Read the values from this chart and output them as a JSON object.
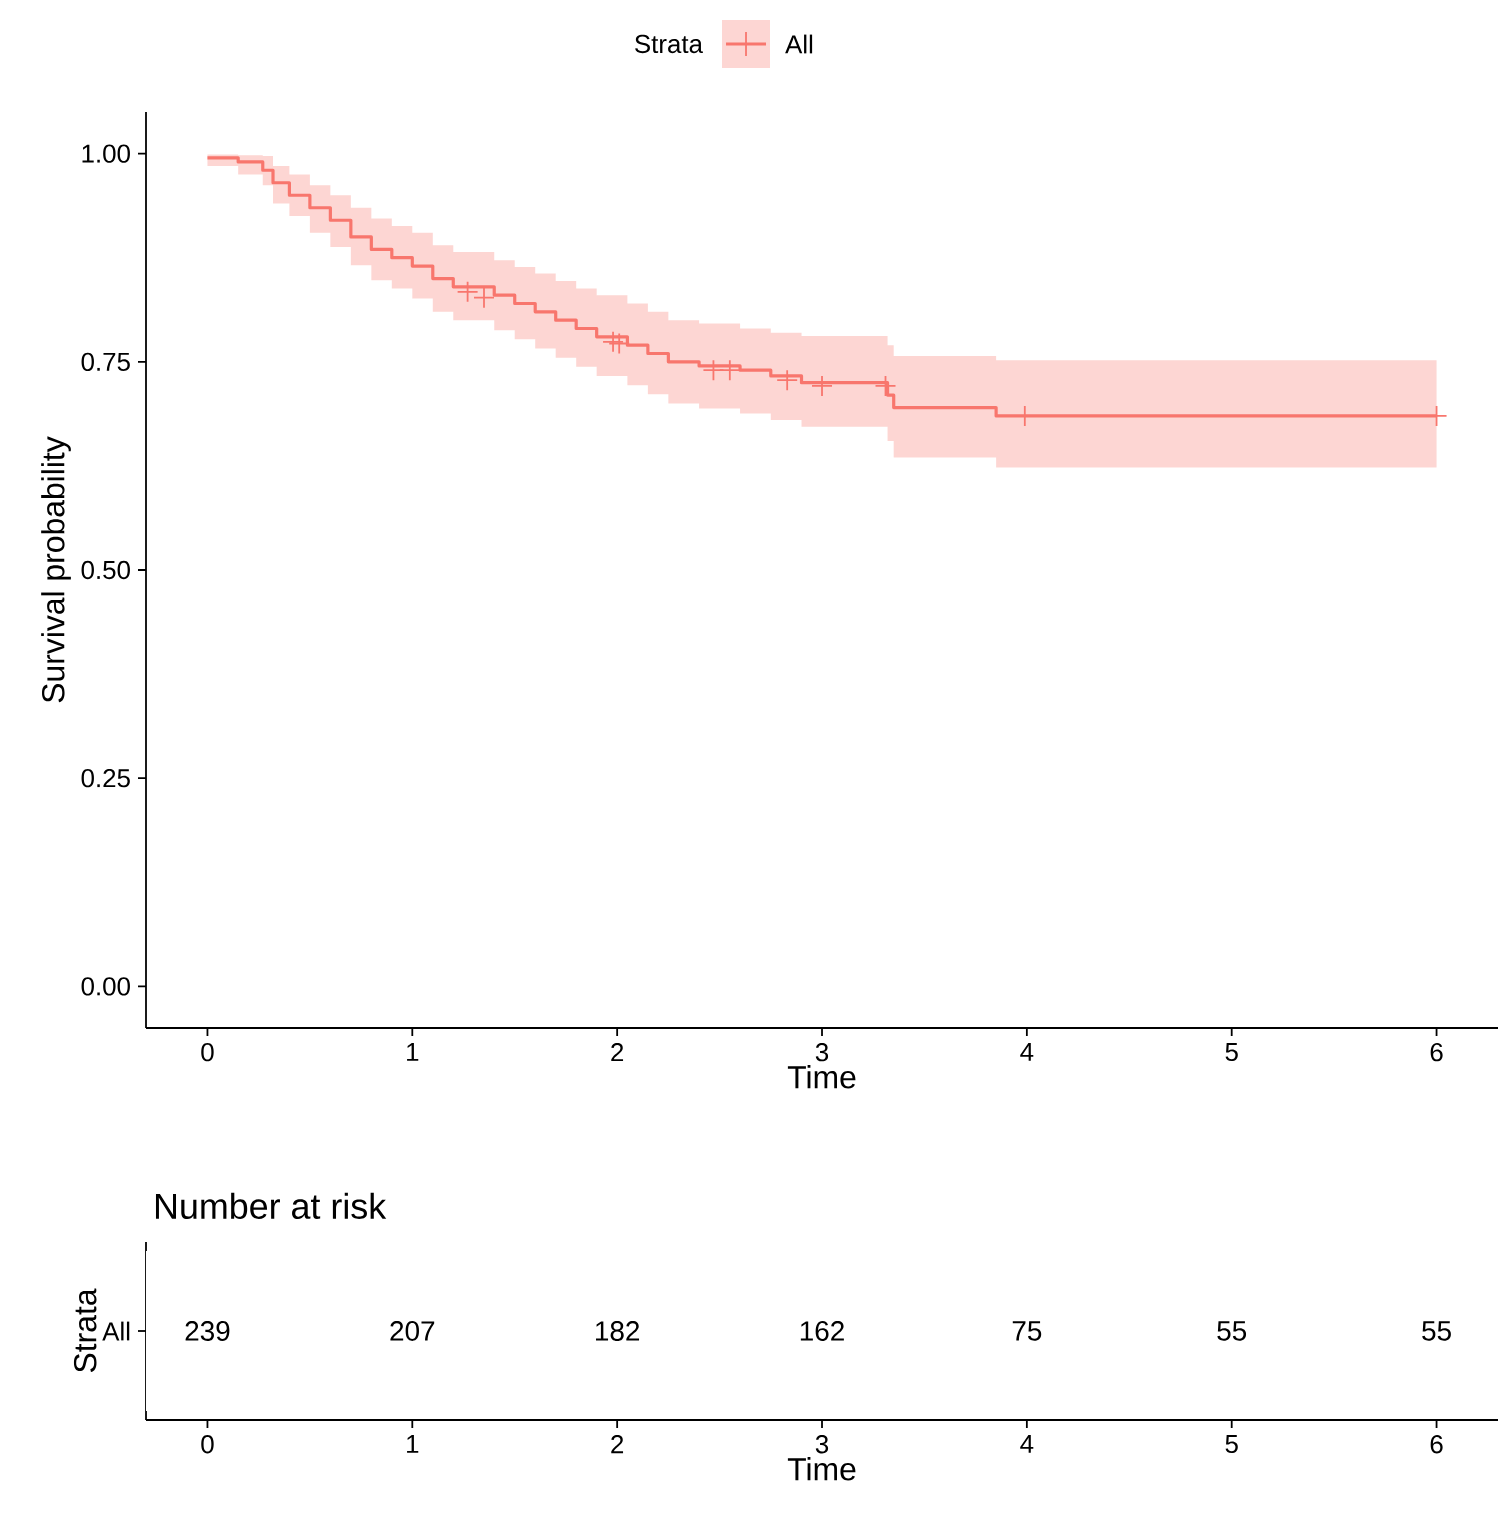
{
  "chart_data": [
    {
      "type": "step",
      "xlabel": "Time",
      "ylabel": "Survival probability",
      "legend": "top",
      "legend_title": "Strata",
      "xlim": [
        -0.3,
        6.3
      ],
      "xticks": [
        0,
        1,
        2,
        3,
        4,
        5,
        6
      ],
      "ylim": [
        -0.05,
        1.05
      ],
      "yticks": [
        {
          "value": 0,
          "label": "0.00"
        },
        {
          "value": 0.25,
          "label": "0.25"
        },
        {
          "value": 0.5,
          "label": "0.50"
        },
        {
          "value": 0.75,
          "label": "0.75"
        },
        {
          "value": 1,
          "label": "1.00"
        }
      ],
      "series": [
        {
          "name": "All",
          "color": "#f8766d",
          "x": [
            0,
            0.15,
            0.27,
            0.32,
            0.4,
            0.5,
            0.6,
            0.7,
            0.8,
            0.9,
            1.0,
            1.1,
            1.2,
            1.4,
            1.5,
            1.6,
            1.7,
            1.8,
            1.9,
            2.05,
            2.15,
            2.25,
            2.4,
            2.6,
            2.75,
            2.9,
            3.32,
            3.35,
            3.85,
            6.0
          ],
          "values": [
            0.995,
            0.99,
            0.98,
            0.965,
            0.95,
            0.935,
            0.92,
            0.9,
            0.885,
            0.875,
            0.865,
            0.85,
            0.84,
            0.83,
            0.82,
            0.81,
            0.8,
            0.79,
            0.78,
            0.77,
            0.76,
            0.75,
            0.745,
            0.74,
            0.733,
            0.725,
            0.71,
            0.695,
            0.685,
            0.685
          ],
          "lower": [
            0.985,
            0.975,
            0.962,
            0.94,
            0.925,
            0.905,
            0.888,
            0.866,
            0.848,
            0.838,
            0.826,
            0.81,
            0.8,
            0.788,
            0.777,
            0.766,
            0.755,
            0.744,
            0.733,
            0.722,
            0.711,
            0.7,
            0.694,
            0.688,
            0.68,
            0.672,
            0.655,
            0.635,
            0.623,
            0.623
          ],
          "upper": [
            0.999,
            0.998,
            0.997,
            0.985,
            0.975,
            0.962,
            0.95,
            0.935,
            0.922,
            0.913,
            0.905,
            0.89,
            0.882,
            0.872,
            0.864,
            0.856,
            0.847,
            0.838,
            0.83,
            0.82,
            0.81,
            0.8,
            0.796,
            0.79,
            0.785,
            0.781,
            0.77,
            0.757,
            0.752,
            0.752
          ]
        },
        {
          "type": "scatter",
          "color": "#f8766d",
          "marker": "cross",
          "x": [
            1.27,
            1.35,
            1.98,
            2.01,
            2.47,
            2.55,
            2.83,
            3.0,
            3.31,
            3.99,
            6.0
          ],
          "values": [
            0.834,
            0.827,
            0.774,
            0.772,
            0.74,
            0.74,
            0.728,
            0.721,
            0.721,
            0.685,
            0.685
          ]
        }
      ]
    },
    {
      "type": "heatmap",
      "title": "Number at risk",
      "xlabel": "Time",
      "ylabel": "Strata",
      "data_labels": true,
      "categories": [
        "0",
        "1",
        "2",
        "3",
        "4",
        "5",
        "6"
      ],
      "y_categories": [
        "All"
      ],
      "cells": [
        [
          239,
          207,
          182,
          162,
          75,
          55,
          55
        ]
      ]
    }
  ]
}
